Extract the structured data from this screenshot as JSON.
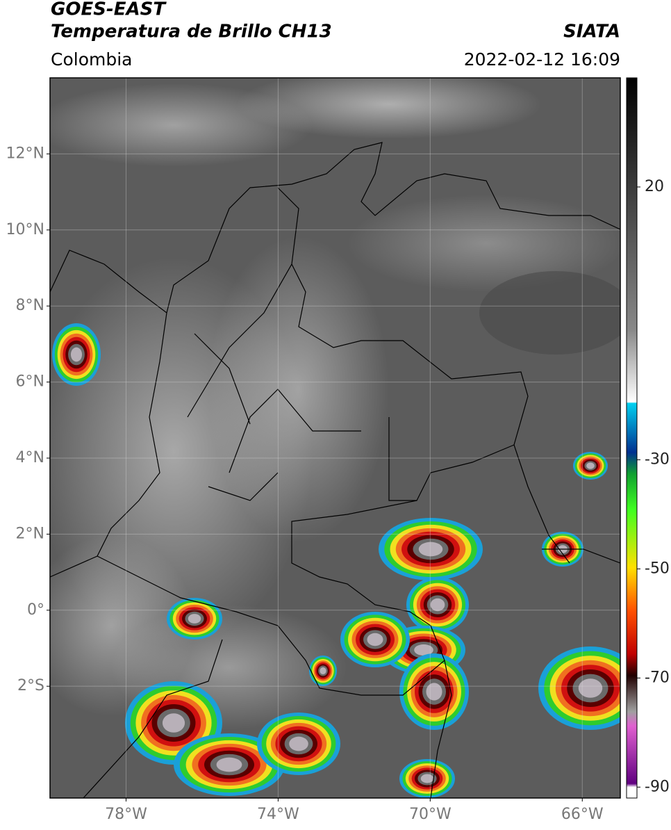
{
  "header": {
    "title": "GOES-EAST",
    "subtitle": "Temperatura de Brillo CH13",
    "region": "Colombia",
    "source": "SIATA",
    "datetime": "2022-02-12 16:09"
  },
  "map": {
    "lon_range": [
      -80,
      -65
    ],
    "lat_range": [
      -4.94,
      14
    ],
    "lat_ticks": [
      {
        "value": 12,
        "label": "12°N"
      },
      {
        "value": 10,
        "label": "10°N"
      },
      {
        "value": 8,
        "label": "8°N"
      },
      {
        "value": 6,
        "label": "6°N"
      },
      {
        "value": 4,
        "label": "4°N"
      },
      {
        "value": 2,
        "label": "2°N"
      },
      {
        "value": 0,
        "label": "0°"
      },
      {
        "value": -2,
        "label": "2°S"
      }
    ],
    "lon_ticks": [
      {
        "value": -78,
        "label": "78°W"
      },
      {
        "value": -74,
        "label": "74°W"
      },
      {
        "value": -70,
        "label": "70°W"
      },
      {
        "value": -66,
        "label": "66°W"
      }
    ]
  },
  "colorbar": {
    "range": [
      40,
      -92
    ],
    "ticks": [
      20,
      -30,
      -50,
      -70,
      -90
    ]
  }
}
